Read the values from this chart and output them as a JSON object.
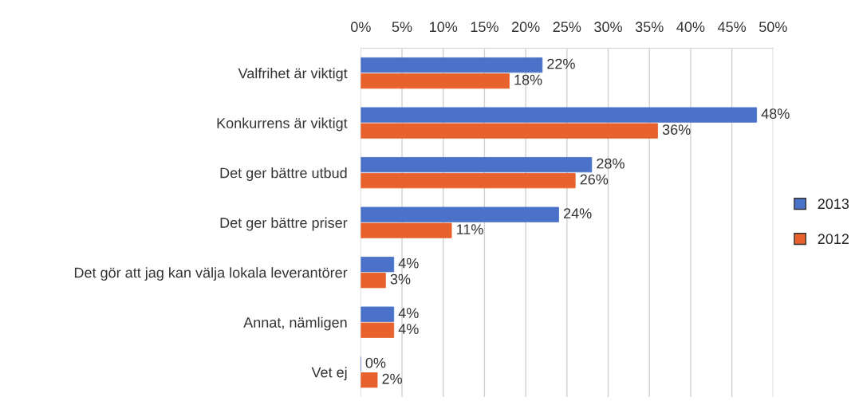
{
  "chart_data": {
    "type": "bar",
    "orientation": "horizontal",
    "categories": [
      "Valfrihet är viktigt",
      "Konkurrens är viktigt",
      "Det ger bättre utbud",
      "Det ger bättre priser",
      "Det gör att jag kan välja lokala leverantörer",
      "Annat, nämligen",
      "Vet ej"
    ],
    "series": [
      {
        "name": "2013",
        "color": "#4a72c8",
        "values": [
          22,
          48,
          28,
          24,
          4,
          4,
          0
        ],
        "value_labels": [
          "22%",
          "48%",
          "28%",
          "24%",
          "4%",
          "4%",
          "0%"
        ]
      },
      {
        "name": "2012",
        "color": "#e8622d",
        "values": [
          18,
          36,
          26,
          11,
          3,
          4,
          2
        ],
        "value_labels": [
          "18%",
          "36%",
          "26%",
          "11%",
          "3%",
          "4%",
          "2%"
        ]
      }
    ],
    "xlim": [
      0,
      50
    ],
    "xticks": [
      {
        "value": 0,
        "label": "0%"
      },
      {
        "value": 5,
        "label": "5%"
      },
      {
        "value": 10,
        "label": "10%"
      },
      {
        "value": 15,
        "label": "15%"
      },
      {
        "value": 20,
        "label": "20%"
      },
      {
        "value": 25,
        "label": "25%"
      },
      {
        "value": 30,
        "label": "30%"
      },
      {
        "value": 35,
        "label": "35%"
      },
      {
        "value": 40,
        "label": "40%"
      },
      {
        "value": 45,
        "label": "45%"
      },
      {
        "value": 50,
        "label": "50%"
      }
    ],
    "grid": "x",
    "legend": "right"
  }
}
